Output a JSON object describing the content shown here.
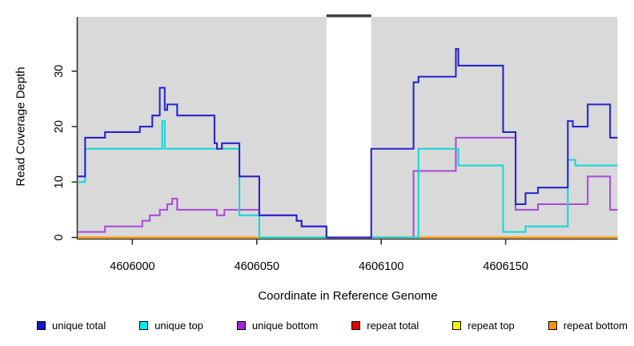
{
  "chart_data": {
    "type": "line",
    "step": true,
    "title": "",
    "xlabel": "Coordinate in Reference Genome",
    "ylabel": "Read Coverage Depth",
    "xlim": [
      4605978,
      4606195
    ],
    "ylim": [
      0,
      39.8
    ],
    "x_ticks": [
      4606000,
      4606050,
      4606100,
      4606150
    ],
    "y_ticks": [
      0,
      10,
      20,
      30
    ],
    "grid": false,
    "legend_position": "bottom",
    "panel_background": "#D9D9D9",
    "axis_color": "#333333",
    "masked_region": {
      "start": 4606078,
      "end": 4606096,
      "fill": "#FFFFFF",
      "top_bar_color": "#3F3F3F"
    },
    "baseline_segments": [
      {
        "start": 4605978,
        "end": 4606195,
        "color": "#FF9900"
      },
      {
        "start": 4606051,
        "end": 4606078,
        "color": "#5FBF8F"
      },
      {
        "start": 4606078,
        "end": 4606096,
        "color": "#4953E6"
      },
      {
        "start": 4606096,
        "end": 4606113,
        "color": "#D94A55"
      }
    ],
    "series": [
      {
        "name": "repeat total",
        "color": "#E00000",
        "points": [
          [
            4605978,
            0
          ]
        ]
      },
      {
        "name": "repeat top",
        "color": "#F5F500",
        "points": [
          [
            4605978,
            0
          ]
        ]
      },
      {
        "name": "repeat bottom",
        "color": "#FF9900",
        "points": [
          [
            4605978,
            0
          ]
        ]
      },
      {
        "name": "unique bottom",
        "color": "#A94FD6",
        "points": [
          [
            4605978,
            1
          ],
          [
            4605989,
            2
          ],
          [
            4606004,
            3
          ],
          [
            4606007,
            4
          ],
          [
            4606011,
            5
          ],
          [
            4606014,
            6
          ],
          [
            4606016,
            7
          ],
          [
            4606018,
            5
          ],
          [
            4606034,
            4
          ],
          [
            4606037,
            5
          ],
          [
            4606051,
            4
          ],
          [
            4606066,
            3
          ],
          [
            4606068,
            2
          ],
          [
            4606078,
            0
          ],
          [
            4606113,
            12
          ],
          [
            4606130,
            18
          ],
          [
            4606154,
            5
          ],
          [
            4606163,
            6
          ],
          [
            4606183,
            11
          ],
          [
            4606192,
            5
          ]
        ]
      },
      {
        "name": "unique top",
        "color": "#17D6D6",
        "points": [
          [
            4605978,
            10
          ],
          [
            4605981,
            16
          ],
          [
            4606012,
            21
          ],
          [
            4606013,
            16
          ],
          [
            4606043,
            4
          ],
          [
            4606051,
            0
          ],
          [
            4606115,
            16
          ],
          [
            4606131,
            13
          ],
          [
            4606149,
            1
          ],
          [
            4606158,
            2
          ],
          [
            4606175,
            14
          ],
          [
            4606178,
            13
          ]
        ]
      },
      {
        "name": "unique total",
        "color": "#2626CE",
        "points": [
          [
            4605978,
            11
          ],
          [
            4605981,
            18
          ],
          [
            4605989,
            19
          ],
          [
            4606003,
            20
          ],
          [
            4606008,
            22
          ],
          [
            4606011,
            27
          ],
          [
            4606013,
            23
          ],
          [
            4606014,
            24
          ],
          [
            4606018,
            22
          ],
          [
            4606033,
            17
          ],
          [
            4606034,
            16
          ],
          [
            4606036,
            17
          ],
          [
            4606043,
            11
          ],
          [
            4606051,
            4
          ],
          [
            4606066,
            3
          ],
          [
            4606068,
            2
          ],
          [
            4606078,
            0
          ],
          [
            4606096,
            16
          ],
          [
            4606113,
            28
          ],
          [
            4606115,
            29
          ],
          [
            4606130,
            34
          ],
          [
            4606131,
            31
          ],
          [
            4606149,
            19
          ],
          [
            4606154,
            6
          ],
          [
            4606158,
            8
          ],
          [
            4606163,
            9
          ],
          [
            4606175,
            21
          ],
          [
            4606177,
            20
          ],
          [
            4606183,
            24
          ],
          [
            4606192,
            18
          ]
        ]
      }
    ],
    "legend": [
      {
        "label": "unique total",
        "color": "#1414CF"
      },
      {
        "label": "unique top",
        "color": "#00EEEE"
      },
      {
        "label": "unique bottom",
        "color": "#9B2AD0"
      },
      {
        "label": "repeat total",
        "color": "#E00000"
      },
      {
        "label": "repeat top",
        "color": "#F5F500"
      },
      {
        "label": "repeat bottom",
        "color": "#F59300"
      }
    ]
  }
}
